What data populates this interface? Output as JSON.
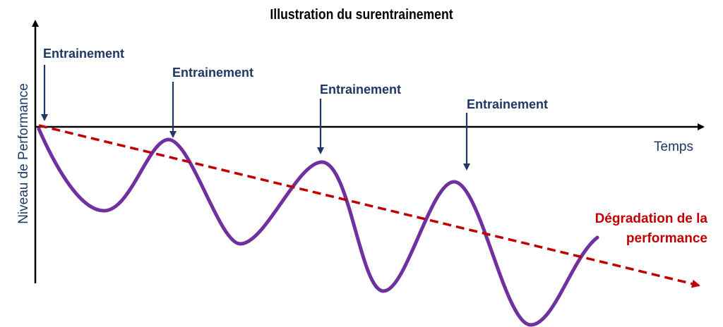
{
  "title": "Illustration du surentrainement",
  "y_axis_label": "Niveau de Performance",
  "x_axis_label": "Temps",
  "training_labels": [
    "Entrainement",
    "Entrainement",
    "Entrainement",
    "Entrainement"
  ],
  "degradation_label": {
    "line1": "Dégradation de la",
    "line2": "performance"
  },
  "colors": {
    "axis": "#000000",
    "label_blue": "#203864",
    "curve_purple": "#7030A0",
    "trend_red": "#C00000"
  }
}
